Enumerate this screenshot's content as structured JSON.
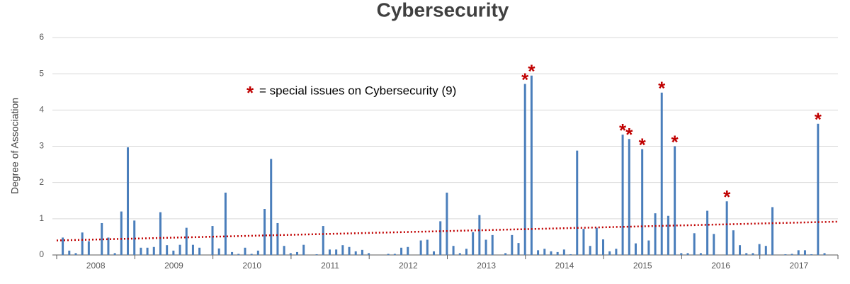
{
  "chart_data": {
    "type": "bar",
    "title": "Cybersecurity",
    "y_label": "Degree of Association",
    "year_labels": [
      "2008",
      "2009",
      "2010",
      "2011",
      "2012",
      "2013",
      "2014",
      "2015",
      "2016",
      "2017"
    ],
    "months_per_year": 12,
    "values": [
      0.48,
      0.12,
      0.05,
      0.62,
      0.38,
      0,
      0.88,
      0.48,
      0.05,
      1.2,
      2.97,
      0.95,
      0.2,
      0.2,
      0.22,
      1.18,
      0.27,
      0.12,
      0.28,
      0.75,
      0.28,
      0.2,
      0,
      0.8,
      0.18,
      1.72,
      0.08,
      0.03,
      0.2,
      0.03,
      0.12,
      1.27,
      2.65,
      0.88,
      0.25,
      0.05,
      0.08,
      0.28,
      0,
      0.02,
      0.8,
      0.15,
      0.15,
      0.27,
      0.22,
      0.1,
      0.14,
      0.05,
      0,
      0,
      0.03,
      0.03,
      0.2,
      0.22,
      0,
      0.4,
      0.42,
      0.1,
      0.93,
      1.72,
      0.25,
      0.05,
      0.17,
      0.63,
      1.1,
      0.42,
      0.55,
      0,
      0.05,
      0.55,
      0.33,
      4.72,
      4.95,
      0.13,
      0.17,
      0.1,
      0.08,
      0.15,
      0.02,
      2.88,
      0.72,
      0.25,
      0.75,
      0.43,
      0.1,
      0.17,
      3.32,
      3.2,
      0.32,
      2.92,
      0.4,
      1.15,
      4.48,
      1.08,
      3.0,
      0.05,
      0.05,
      0.6,
      0.05,
      1.22,
      0.58,
      0,
      1.48,
      0.68,
      0.27,
      0.05,
      0.05,
      0.3,
      0.25,
      1.32,
      0,
      0.02,
      0.03,
      0.13,
      0.13,
      0.02,
      3.62,
      0.05,
      0,
      0
    ],
    "color": "#4a7ebb",
    "special_issues": [
      71,
      72,
      86,
      87,
      89,
      92,
      94,
      102,
      116
    ],
    "special_marker": "*",
    "special_color": "#c00000",
    "annotation": "= special issues on Cybersecurity (9)",
    "trendline": {
      "start": 0.4,
      "end": 0.92,
      "color": "#c00000"
    },
    "ylim": [
      0,
      6
    ],
    "yticks": [
      0,
      1,
      2,
      3,
      4,
      5,
      6
    ],
    "grid": true
  }
}
